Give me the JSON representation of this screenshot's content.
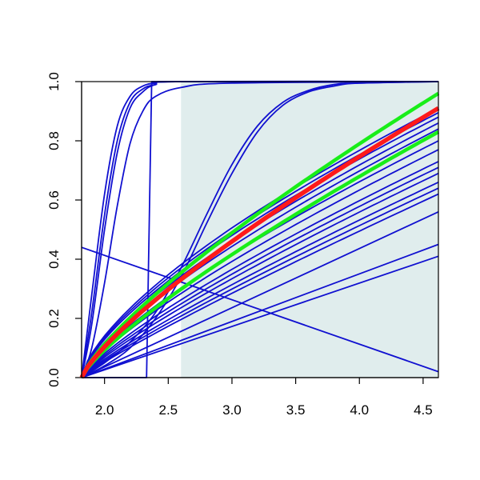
{
  "chart_data": {
    "type": "line",
    "title": "",
    "xlabel": "",
    "ylabel": "",
    "xlim": [
      1.82,
      4.62
    ],
    "ylim": [
      0,
      1
    ],
    "grid": false,
    "legend": "none",
    "x_ticks": [
      "2.0",
      "2.5",
      "3.0",
      "3.5",
      "4.0",
      "4.5"
    ],
    "y_ticks": [
      "0.0",
      "0.2",
      "0.4",
      "0.6",
      "0.8",
      "1.0"
    ],
    "shaded_region": {
      "x_from": 2.6,
      "x_to": 4.62,
      "color": "#e0eded"
    },
    "colors": {
      "curves": "#1010d0",
      "highlight": "#ff1a1a",
      "bounds": "#19ee19"
    },
    "series": [
      {
        "role": "steep",
        "x": [
          1.82,
          1.9,
          2.0,
          2.1,
          2.2,
          2.3,
          2.4,
          2.6,
          4.62
        ],
        "y": [
          0,
          0.28,
          0.62,
          0.85,
          0.95,
          0.985,
          0.995,
          1.0,
          1.0
        ]
      },
      {
        "role": "steep",
        "x": [
          1.82,
          1.9,
          2.0,
          2.1,
          2.2,
          2.3,
          2.4,
          2.6,
          4.62
        ],
        "y": [
          0,
          0.22,
          0.55,
          0.8,
          0.93,
          0.975,
          0.99,
          1.0,
          1.0
        ]
      },
      {
        "role": "steep",
        "x": [
          1.82,
          1.9,
          2.0,
          2.1,
          2.2,
          2.3,
          2.4,
          2.6,
          4.62
        ],
        "y": [
          0,
          0.18,
          0.5,
          0.76,
          0.91,
          0.965,
          0.99,
          1.0,
          1.0
        ]
      },
      {
        "role": "steep",
        "x": [
          1.82,
          1.9,
          2.0,
          2.1,
          2.2,
          2.3,
          2.4,
          2.6,
          3.0,
          4.62
        ],
        "y": [
          0,
          0.1,
          0.32,
          0.58,
          0.79,
          0.9,
          0.95,
          0.98,
          0.995,
          1.0
        ]
      },
      {
        "role": "step",
        "x": [
          1.82,
          2.33,
          2.35,
          2.37,
          4.62
        ],
        "y": [
          0,
          0,
          0.5,
          1.0,
          1.0
        ]
      },
      {
        "role": "sigmoid",
        "x": [
          1.82,
          2.0,
          2.2,
          2.4,
          2.6,
          2.8,
          3.0,
          3.2,
          3.4,
          3.6,
          3.8,
          4.0,
          4.62
        ],
        "y": [
          0,
          0.05,
          0.12,
          0.22,
          0.37,
          0.55,
          0.72,
          0.85,
          0.93,
          0.97,
          0.99,
          0.995,
          1.0
        ]
      },
      {
        "role": "sigmoid",
        "x": [
          1.82,
          2.0,
          2.2,
          2.4,
          2.6,
          2.8,
          3.0,
          3.2,
          3.4,
          3.6,
          3.8,
          4.0,
          4.62
        ],
        "y": [
          0,
          0.04,
          0.1,
          0.2,
          0.34,
          0.52,
          0.69,
          0.83,
          0.92,
          0.965,
          0.985,
          0.995,
          1.0
        ]
      },
      {
        "role": "line",
        "x": [
          1.82,
          4.62
        ],
        "y": [
          0.44,
          0.02
        ]
      },
      {
        "role": "line",
        "x": [
          1.82,
          4.62
        ],
        "y": [
          0,
          0.41
        ]
      },
      {
        "role": "line",
        "x": [
          1.82,
          4.62
        ],
        "y": [
          0,
          0.45
        ]
      },
      {
        "role": "line",
        "x": [
          1.82,
          4.62
        ],
        "y": [
          0,
          0.56
        ]
      },
      {
        "role": "power",
        "x": [
          1.82,
          4.62
        ],
        "y": [
          0,
          0.62
        ],
        "exponent": 0.9
      },
      {
        "role": "power",
        "x": [
          1.82,
          4.62
        ],
        "y": [
          0,
          0.64
        ],
        "exponent": 0.88
      },
      {
        "role": "power",
        "x": [
          1.82,
          4.62
        ],
        "y": [
          0,
          0.66
        ],
        "exponent": 0.86
      },
      {
        "role": "power",
        "x": [
          1.82,
          4.62
        ],
        "y": [
          0,
          0.69
        ],
        "exponent": 0.84
      },
      {
        "role": "power",
        "x": [
          1.82,
          4.62
        ],
        "y": [
          0,
          0.71
        ],
        "exponent": 0.82
      },
      {
        "role": "power",
        "x": [
          1.82,
          4.62
        ],
        "y": [
          0,
          0.73
        ],
        "exponent": 0.8
      },
      {
        "role": "power",
        "x": [
          1.82,
          4.62
        ],
        "y": [
          0,
          0.77
        ],
        "exponent": 0.78
      },
      {
        "role": "power",
        "x": [
          1.82,
          4.62
        ],
        "y": [
          0,
          0.8
        ],
        "exponent": 0.76
      },
      {
        "role": "power",
        "x": [
          1.82,
          4.62
        ],
        "y": [
          0,
          0.84
        ],
        "exponent": 0.74
      },
      {
        "role": "power",
        "x": [
          1.82,
          4.62
        ],
        "y": [
          0,
          0.86
        ],
        "exponent": 0.72
      },
      {
        "role": "power",
        "x": [
          1.82,
          4.62
        ],
        "y": [
          0,
          0.88
        ],
        "exponent": 0.7
      },
      {
        "role": "power",
        "x": [
          1.82,
          4.62
        ],
        "y": [
          0,
          0.895
        ],
        "exponent": 0.69
      },
      {
        "role": "power",
        "x": [
          1.82,
          4.62
        ],
        "y": [
          0,
          0.91
        ],
        "exponent": 0.68
      },
      {
        "role": "bound",
        "x": [
          1.82,
          4.62
        ],
        "y": [
          0,
          0.96
        ],
        "exponent": 0.78
      },
      {
        "role": "highlight",
        "x": [
          1.82,
          4.62
        ],
        "y": [
          0,
          0.91
        ],
        "exponent": 0.79
      },
      {
        "role": "bound",
        "x": [
          1.82,
          4.62
        ],
        "y": [
          0,
          0.83
        ],
        "exponent": 0.8
      }
    ]
  }
}
